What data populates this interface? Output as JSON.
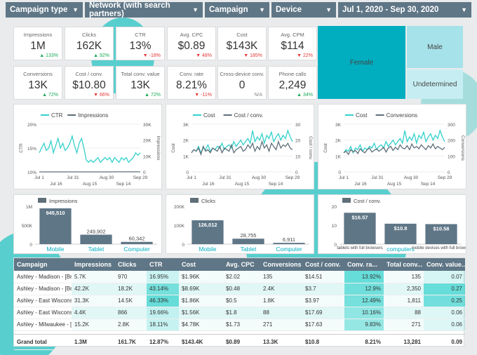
{
  "filters": [
    {
      "label": "Campaign type"
    },
    {
      "label": "Network (with search partners)"
    },
    {
      "label": "Campaign"
    },
    {
      "label": "Device"
    },
    {
      "label": "Jul 1, 2020 - Sep 30, 2020"
    }
  ],
  "kpis": [
    {
      "label": "Impressions",
      "value": "1M",
      "change": "133%",
      "dir": "up"
    },
    {
      "label": "Clicks",
      "value": "162K",
      "change": "92%",
      "dir": "up"
    },
    {
      "label": "CTR",
      "value": "13%",
      "change": "-18%",
      "dir": "down"
    },
    {
      "label": "Avg. CPC",
      "value": "$0.89",
      "change": "48%",
      "dir": "down"
    },
    {
      "label": "Cost",
      "value": "$143K",
      "change": "185%",
      "dir": "down"
    },
    {
      "label": "Avg. CPM",
      "value": "$114",
      "change": "22%",
      "dir": "down"
    },
    {
      "label": "Conversions",
      "value": "13K",
      "change": "72%",
      "dir": "up"
    },
    {
      "label": "Cost / conv.",
      "value": "$10.80",
      "change": "66%",
      "dir": "down"
    },
    {
      "label": "Total conv. value",
      "value": "13K",
      "change": "72%",
      "dir": "up"
    },
    {
      "label": "Conv. rate",
      "value": "8.21%",
      "change": "-11%",
      "dir": "down"
    },
    {
      "label": "Cross-device conv.",
      "value": "0",
      "change": "N/A",
      "dir": "na"
    },
    {
      "label": "Phone calls",
      "value": "2,249",
      "change": "34%",
      "dir": "up"
    }
  ],
  "treemap": {
    "female": "Female",
    "male": "Male",
    "undetermined": "Undetermined",
    "colors": {
      "female": "#00aec0",
      "male": "#a6e2ea",
      "undetermined": "#c6eef2"
    }
  },
  "colors": {
    "teal": "#33d1cc",
    "gray": "#5f6f78",
    "header": "#5f7686"
  },
  "chart_data": [
    {
      "type": "line",
      "series": [
        {
          "name": "CTR",
          "axis": "left",
          "color": "#33d1cc",
          "values": [
            14,
            15,
            16,
            14.5,
            15,
            16.5,
            14,
            15.5,
            17,
            15,
            16,
            14.5,
            15,
            16,
            17.5,
            15.5,
            14,
            16,
            17,
            15,
            12.5,
            12,
            12.5,
            12,
            12.5,
            13,
            12,
            12.5,
            13,
            12.5,
            13,
            12,
            13,
            12.5,
            12,
            13,
            12.5,
            13,
            12,
            12.5,
            13,
            14,
            13.5,
            14
          ]
        },
        {
          "name": "Impressions",
          "axis": "right",
          "color": "#5f6f78",
          "values": [
            10,
            12,
            11,
            15,
            13,
            12,
            14,
            11,
            13,
            12,
            14,
            15,
            12,
            13,
            11,
            14,
            12,
            13,
            12,
            15,
            14,
            16,
            15,
            17,
            16,
            18,
            17,
            19,
            18,
            20,
            22,
            21,
            24,
            26,
            23,
            25,
            24,
            27,
            25,
            26,
            24,
            25,
            23,
            22
          ]
        }
      ],
      "ylabel_left": "CTR",
      "ylabel_right": "Impressions",
      "yticks_left": [
        "20%",
        "15%",
        "10%"
      ],
      "yticks_right": [
        "30K",
        "20K",
        "10K",
        "0"
      ],
      "ylim_left": [
        10,
        20
      ],
      "ylim_right": [
        0,
        30000
      ],
      "xticks_top": [
        "Jul 1",
        "Jul 31",
        "Aug 30",
        "Sep 29"
      ],
      "xticks_bottom": [
        "Jul 16",
        "Aug 15",
        "Sep 14"
      ]
    },
    {
      "type": "line",
      "series": [
        {
          "name": "Cost",
          "axis": "left",
          "color": "#33d1cc",
          "values": [
            1.2,
            1.4,
            1.3,
            1.6,
            1.2,
            1.5,
            1.4,
            1.7,
            1.3,
            1.5,
            1.4,
            1.6,
            1.5,
            1.8,
            1.4,
            1.6,
            1.7,
            1.5,
            1.9,
            1.6,
            1.8,
            2,
            1.7,
            1.9,
            2.1,
            1.8,
            2.6,
            1.9,
            2.2,
            2,
            2.4,
            1.8,
            2.3,
            2.1,
            2.5,
            1.9,
            2.2,
            2.4,
            2,
            2.3,
            2.1,
            2.6,
            2.2,
            1.9
          ]
        },
        {
          "name": "Cost / conv.",
          "axis": "right",
          "color": "#5f6f78",
          "values": [
            12,
            14,
            13,
            15,
            11,
            16,
            13,
            14,
            12,
            15,
            14,
            13,
            16,
            12,
            15,
            14,
            13,
            17,
            12,
            14,
            15,
            16,
            13,
            14,
            17,
            15,
            18,
            13,
            16,
            14,
            19,
            15,
            17,
            13,
            18,
            16,
            14,
            19,
            15,
            17,
            16,
            18,
            15,
            14
          ]
        }
      ],
      "ylabel_left": "Cost",
      "ylabel_right": "Cost / conv.",
      "yticks_left": [
        "3K",
        "2K",
        "1K",
        "0"
      ],
      "yticks_right": [
        "30",
        "20",
        "10",
        "0"
      ],
      "ylim_left": [
        0,
        3
      ],
      "ylim_right": [
        0,
        30
      ],
      "xticks_top": [
        "Jul 1",
        "Jul 31",
        "Aug 30",
        "Sep 29"
      ],
      "xticks_bottom": [
        "Jul 16",
        "Aug 15",
        "Sep 14"
      ]
    },
    {
      "type": "line",
      "series": [
        {
          "name": "Cost",
          "axis": "left",
          "color": "#33d1cc",
          "values": [
            1.2,
            1.4,
            1.3,
            1.6,
            1.2,
            1.5,
            1.4,
            1.7,
            1.3,
            1.5,
            1.4,
            1.6,
            1.5,
            1.8,
            1.4,
            1.6,
            1.7,
            1.5,
            1.9,
            1.6,
            1.8,
            2,
            1.7,
            1.9,
            2.1,
            1.8,
            2.6,
            1.9,
            2.2,
            2,
            2.4,
            1.8,
            2.3,
            2.1,
            2.5,
            1.9,
            2.2,
            2.4,
            2,
            2.3,
            2.1,
            2.6,
            2.2,
            1.9
          ]
        },
        {
          "name": "Conversions",
          "axis": "right",
          "color": "#5f6f78",
          "values": [
            120,
            130,
            110,
            140,
            125,
            135,
            115,
            145,
            130,
            120,
            140,
            150,
            125,
            135,
            145,
            130,
            140,
            155,
            125,
            150,
            160,
            135,
            155,
            140,
            170,
            150,
            145,
            165,
            140,
            175,
            150,
            160,
            145,
            170,
            155,
            140,
            165,
            150,
            175,
            145,
            160,
            150,
            140,
            155
          ]
        }
      ],
      "ylabel_left": "Cost",
      "ylabel_right": "Conversions",
      "yticks_left": [
        "3K",
        "2K",
        "1K",
        "0"
      ],
      "yticks_right": [
        "300",
        "200",
        "100",
        "0"
      ],
      "ylim_left": [
        0,
        3
      ],
      "ylim_right": [
        0,
        300
      ],
      "xticks_top": [
        "Jul 1",
        "Jul 31",
        "Aug 30",
        "Sep 29"
      ],
      "xticks_bottom": [
        "Jul 16",
        "Aug 15",
        "Sep 14"
      ]
    },
    {
      "type": "bar",
      "series": [
        {
          "name": "Impressions",
          "values": [
            945510,
            249902,
            60342
          ]
        }
      ],
      "value_labels": [
        "945,510",
        "249,902",
        "60,342"
      ],
      "categories": [
        "Mobile",
        "Tablet",
        "Computer"
      ],
      "yticks": [
        "1M",
        "500K",
        "0"
      ],
      "ylim": [
        0,
        1000000
      ]
    },
    {
      "type": "bar",
      "series": [
        {
          "name": "Clicks",
          "values": [
            126012,
            28755,
            6911
          ]
        }
      ],
      "value_labels": [
        "126,012",
        "28,755",
        "6,911"
      ],
      "categories": [
        "Mobile",
        "Tablet",
        "Computer"
      ],
      "yticks": [
        "200K",
        "100K",
        "0"
      ],
      "ylim": [
        0,
        200000
      ]
    },
    {
      "type": "bar",
      "series": [
        {
          "name": "Cost / conv.",
          "values": [
            16.57,
            10.8,
            10.58
          ]
        }
      ],
      "value_labels": [
        "$16.57",
        "$10.8",
        "$10.58"
      ],
      "categories": [
        "tablets with full browsers",
        "computers",
        "mobile devices with full brows..."
      ],
      "yticks": [
        "20",
        "10",
        "0"
      ],
      "ylim": [
        0,
        20
      ]
    }
  ],
  "table": {
    "headers": [
      "Campaign",
      "Impressions",
      "Clicks",
      "CTR",
      "Cost",
      "Avg. CPC",
      "Conversions",
      "Cost / conv.",
      "Conv. ra...",
      "Total conv...",
      "Conv. value..."
    ],
    "rows": [
      [
        "Ashley - Madison - [Br...",
        "5.7K",
        "970",
        "16.95%",
        "$1.96K",
        "$2.02",
        "135",
        "$14.51",
        "13.92%",
        "135",
        "0.07"
      ],
      [
        "Ashley - Madison - [Br...",
        "42.2K",
        "18.2K",
        "43.14%",
        "$8.69K",
        "$0.48",
        "2.4K",
        "$3.7",
        "12.9%",
        "2,350",
        "0.27"
      ],
      [
        "Ashley - East Wisconsi...",
        "31.3K",
        "14.5K",
        "46.33%",
        "$1.86K",
        "$0.5",
        "1.8K",
        "$3.97",
        "12.49%",
        "1,811",
        "0.25"
      ],
      [
        "Ashley - East Wisconsi...",
        "4.4K",
        "866",
        "19.66%",
        "$1.56K",
        "$1.8",
        "88",
        "$17.69",
        "10.16%",
        "88",
        "0.06"
      ],
      [
        "Ashley - Milwaukee - [...",
        "15.2K",
        "2.8K",
        "18.11%",
        "$4.78K",
        "$1.73",
        "271",
        "$17.63",
        "9.83%",
        "271",
        "0.06"
      ]
    ],
    "total": [
      "Grand total",
      "1.3M",
      "161.7K",
      "12.87%",
      "$143.4K",
      "$0.89",
      "13.3K",
      "$10.8",
      "8.21%",
      "13,281",
      "0.09"
    ]
  }
}
